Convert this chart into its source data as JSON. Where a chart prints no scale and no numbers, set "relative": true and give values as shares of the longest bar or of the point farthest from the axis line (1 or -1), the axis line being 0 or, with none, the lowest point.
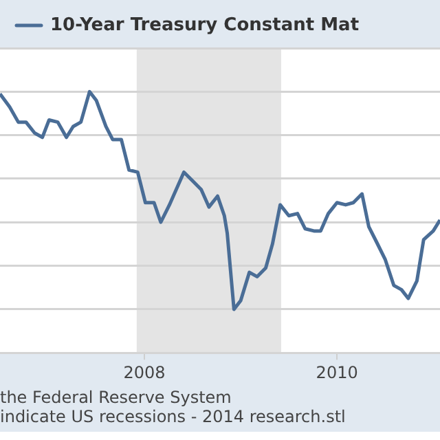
{
  "chart_data": {
    "type": "line",
    "relative": true,
    "x": [
      2006.5,
      2006.6,
      2006.69,
      2006.77,
      2006.86,
      2006.94,
      2007.01,
      2007.1,
      2007.19,
      2007.26,
      2007.34,
      2007.43,
      2007.5,
      2007.6,
      2007.67,
      2007.76,
      2007.84,
      2007.93,
      2008.01,
      2008.1,
      2008.17,
      2008.26,
      2008.33,
      2008.41,
      2008.5,
      2008.59,
      2008.67,
      2008.76,
      2008.83,
      2008.86,
      2008.93,
      2009.0,
      2009.09,
      2009.17,
      2009.26,
      2009.33,
      2009.41,
      2009.5,
      2009.59,
      2009.67,
      2009.76,
      2009.83,
      2009.91,
      2010.0,
      2010.09,
      2010.17,
      2010.26,
      2010.33,
      2010.41,
      2010.5,
      2010.59,
      2010.67,
      2010.74,
      2010.83,
      2010.9,
      2011.0,
      2011.07
    ],
    "series": [
      {
        "name": "10-Year Treasury Constant Mat",
        "color": "#4a6d96",
        "values": [
          0.99,
          0.93,
          0.86,
          0.86,
          0.81,
          0.79,
          0.87,
          0.86,
          0.79,
          0.84,
          0.86,
          1,
          0.96,
          0.84,
          0.78,
          0.78,
          0.64,
          0.63,
          0.49,
          0.49,
          0.4,
          0.48,
          0.55,
          0.63,
          0.59,
          0.55,
          0.47,
          0.52,
          0.43,
          0.35,
          0,
          0.04,
          0.17,
          0.15,
          0.19,
          0.3,
          0.48,
          0.43,
          0.44,
          0.37,
          0.36,
          0.36,
          0.44,
          0.49,
          0.48,
          0.49,
          0.53,
          0.38,
          0.31,
          0.23,
          0.11,
          0.09,
          0.05,
          0.13,
          0.32,
          0.36,
          0.41
        ]
      }
    ],
    "xlim": [
      2006.5,
      2011.07
    ],
    "xticks": [
      2008,
      2010
    ],
    "bands": [
      {
        "axis": "x",
        "from": 2007.92,
        "to": 2009.42,
        "color": "#e4e4e4"
      }
    ],
    "grid": "y",
    "legend": "top",
    "line_style": "solid",
    "marker": "none",
    "annotations": [
      "the Federal Reserve System",
      "indicate US recessions - 2014 research.stl"
    ]
  }
}
